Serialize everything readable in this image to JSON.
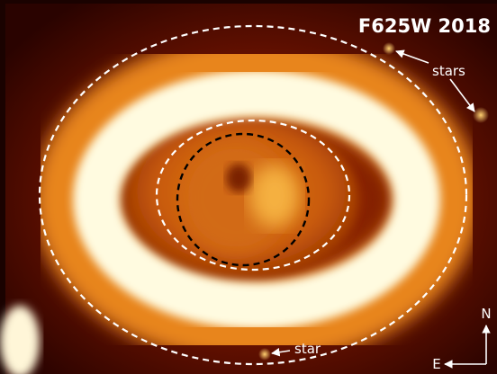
{
  "title": "F625W 2018",
  "annotations": {
    "stars": "stars",
    "star": "star"
  },
  "compass": {
    "north": "N",
    "east": "E"
  }
}
